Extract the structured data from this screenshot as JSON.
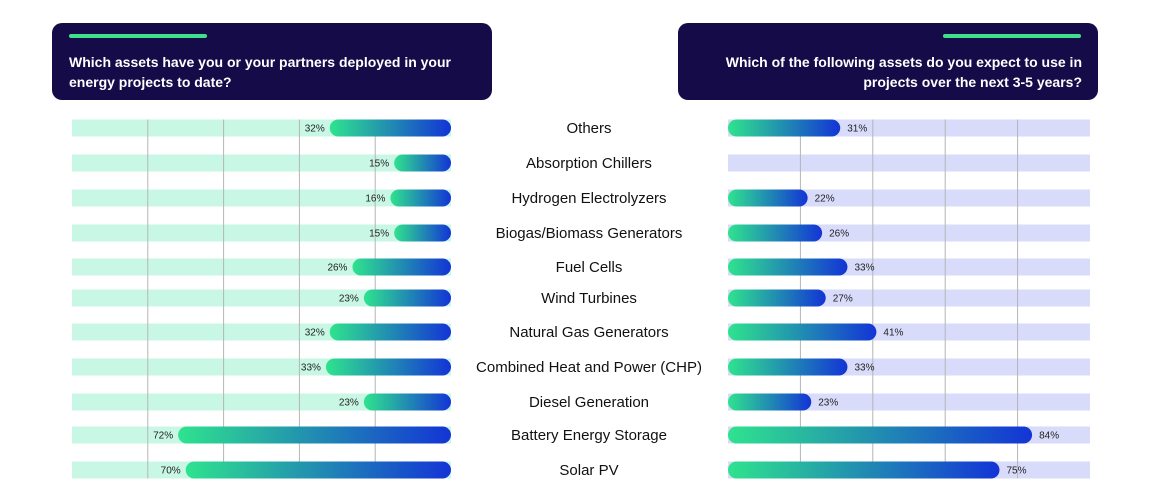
{
  "questions": {
    "left": "Which assets have you or your partners deployed in your energy projects to date?",
    "right": "Which of the following assets do you expect to use in projects over the next 3-5 years?"
  },
  "colors": {
    "header_bg": "#150b48",
    "accent": "#3ee08c",
    "left_track": "#c9f7e6",
    "right_track": "#d9dbfa",
    "bar_start": "#2fe38e",
    "bar_end": "#1334d6",
    "grid": "#b5b5b5"
  },
  "chart_data": [
    {
      "type": "bar",
      "orientation": "horizontal",
      "direction": "right-to-left",
      "title": "Which assets have you or your partners deployed in your energy projects to date?",
      "categories": [
        "Others",
        "Absorption Chillers",
        "Hydrogen Electrolyzers",
        "Biogas/Biomass Generators",
        "Fuel Cells",
        "Wind Turbines",
        "Natural Gas Generators",
        "Combined Heat and Power (CHP)",
        "Diesel Generation",
        "Battery Energy Storage",
        "Solar PV"
      ],
      "values": [
        32,
        15,
        16,
        15,
        26,
        23,
        32,
        33,
        23,
        72,
        70
      ],
      "value_labels": [
        "32%",
        "15%",
        "16%",
        "15%",
        "26%",
        "23%",
        "32%",
        "33%",
        "23%",
        "72%",
        "70%"
      ],
      "xlim": [
        0,
        100
      ],
      "grid": true
    },
    {
      "type": "bar",
      "orientation": "horizontal",
      "direction": "left-to-right",
      "title": "Which of the following assets do you expect to use in projects over the next 3-5 years?",
      "categories": [
        "Others",
        "Absorption Chillers",
        "Hydrogen Electrolyzers",
        "Biogas/Biomass Generators",
        "Fuel Cells",
        "Wind Turbines",
        "Natural Gas Generators",
        "Combined Heat and Power (CHP)",
        "Diesel Generation",
        "Battery Energy Storage",
        "Solar PV"
      ],
      "values": [
        31,
        null,
        22,
        26,
        33,
        27,
        41,
        33,
        23,
        84,
        75
      ],
      "value_labels": [
        "31%",
        "",
        "22%",
        "26%",
        "33%",
        "27%",
        "41%",
        "33%",
        "23%",
        "84%",
        "75%"
      ],
      "xlim": [
        0,
        100
      ],
      "grid": true
    }
  ]
}
